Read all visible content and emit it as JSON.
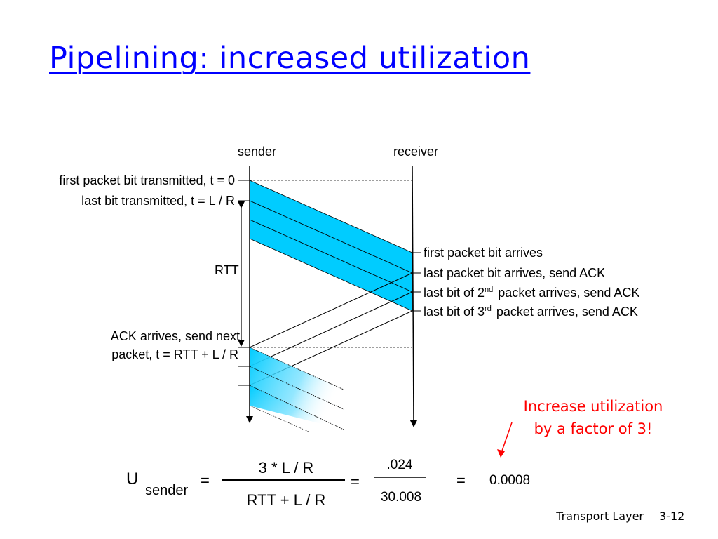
{
  "slide": {
    "title": "Pipelining: increased utilization",
    "footer_section": "Transport Layer",
    "footer_page": "3-12"
  },
  "diagram": {
    "sender_label": "sender",
    "receiver_label": "receiver",
    "rtt_label": "RTT",
    "left_labels": {
      "first_bit": "first packet bit transmitted, t = 0",
      "last_bit": "last bit transmitted, t = L / R",
      "ack_line1": "ACK arrives, send next",
      "ack_line2": "packet, t = RTT + L / R"
    },
    "right_labels": {
      "first_arrives": "first packet bit arrives",
      "last_arrives": "last packet bit arrives, send ACK",
      "second_pre": "last bit of 2",
      "second_sup": "nd",
      "second_post": " packet arrives, send ACK",
      "third_pre": "last bit of 3",
      "third_sup": "rd",
      "third_post": " packet arrives, send ACK"
    },
    "colors": {
      "packet_fill": "#00ccff",
      "annotation": "#ff0000",
      "title": "#0000ff"
    }
  },
  "annotation": {
    "line1": "Increase utilization",
    "line2": "by a factor of 3!"
  },
  "equation": {
    "u": "U",
    "subscript": "sender",
    "equals": "=",
    "numerator": "3 * L / R",
    "denominator": "RTT + L / R",
    "num2": ".024",
    "den2": "30.008",
    "result": "0.0008"
  }
}
